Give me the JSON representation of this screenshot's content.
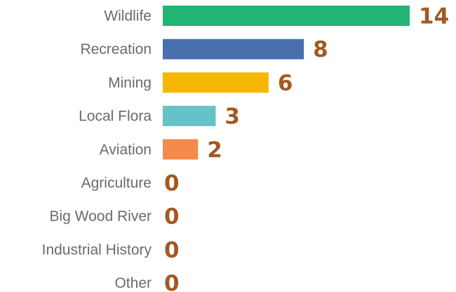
{
  "chart_data": {
    "type": "bar",
    "orientation": "horizontal",
    "categories": [
      "Wildlife",
      "Recreation",
      "Mining",
      "Local Flora",
      "Aviation",
      "Agriculture",
      "Big Wood River",
      "Industrial History",
      "Other"
    ],
    "values": [
      14,
      8,
      6,
      3,
      2,
      0,
      0,
      0,
      0
    ],
    "colors": [
      "#22b573",
      "#4a6fae",
      "#f5b800",
      "#66c2c7",
      "#f58a4b",
      "#22b573",
      "#22b573",
      "#22b573",
      "#22b573"
    ],
    "data_labels": [
      "14",
      "8",
      "6",
      "3",
      "2",
      "0",
      "0",
      "0",
      "0"
    ],
    "label_color": "#a3591f",
    "category_label_color": "#6b6b6b",
    "grid": false,
    "legend": "none",
    "xlim": [
      0,
      14
    ]
  }
}
